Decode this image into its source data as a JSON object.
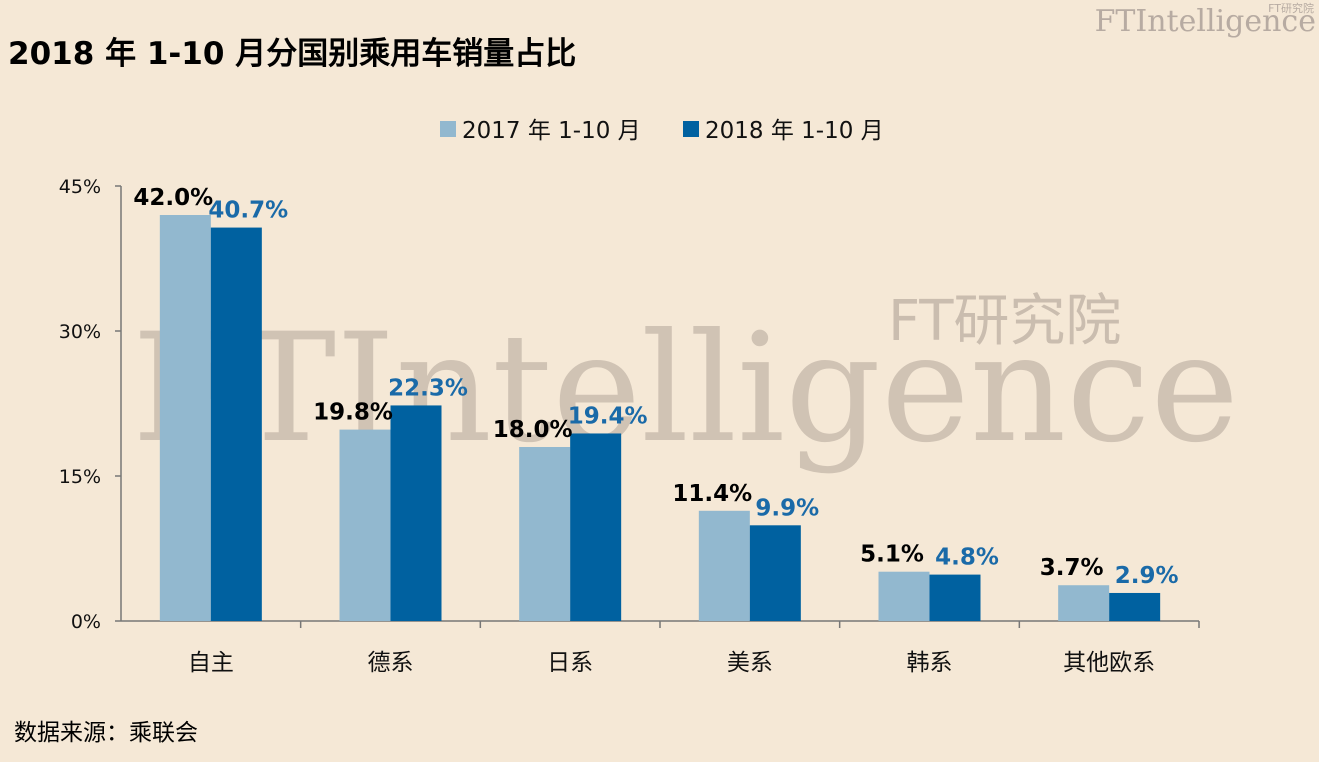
{
  "title": "2018 年 1-10 月分国别乘用车销量占比",
  "source": "数据来源：乘联会",
  "logo": {
    "main": "FTIntelligence",
    "small": "FT研究院"
  },
  "watermark": {
    "main": "FTIntelligence",
    "cn": "FT研究院"
  },
  "colors": {
    "background": "#f5e8d6",
    "series_2017": "#92b8cf",
    "series_2018": "#0061a0",
    "label_2017": "#000000",
    "label_2018": "#1a6aa8"
  },
  "chart_data": {
    "type": "bar",
    "title": "2018 年 1-10 月分国别乘用车销量占比",
    "xlabel": "",
    "ylabel": "",
    "ylim": [
      0,
      45
    ],
    "yticks": [
      "0%",
      "15%",
      "30%",
      "45%"
    ],
    "ytick_values": [
      0,
      15,
      30,
      45
    ],
    "grid": false,
    "legend_position": "top-center",
    "categories": [
      "自主",
      "德系",
      "日系",
      "美系",
      "韩系",
      "其他欧系"
    ],
    "series": [
      {
        "name": "2017 年 1-10 月",
        "values": [
          42.0,
          19.8,
          18.0,
          11.4,
          5.1,
          3.7
        ],
        "labels": [
          "42.0%",
          "19.8%",
          "18.0%",
          "11.4%",
          "5.1%",
          "3.7%"
        ]
      },
      {
        "name": "2018 年 1-10 月",
        "values": [
          40.7,
          22.3,
          19.4,
          9.9,
          4.8,
          2.9
        ],
        "labels": [
          "40.7%",
          "22.3%",
          "19.4%",
          "9.9%",
          "4.8%",
          "2.9%"
        ]
      }
    ]
  }
}
